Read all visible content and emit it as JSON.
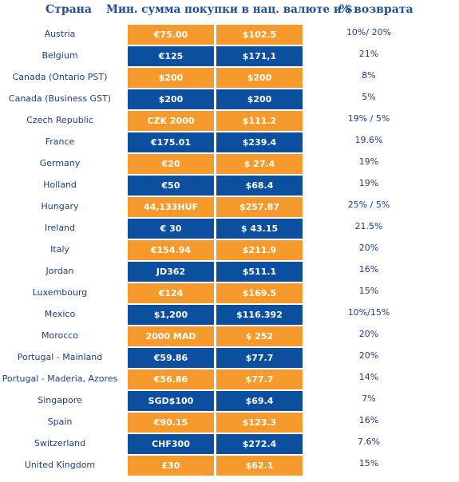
{
  "header": {
    "country": "Страна",
    "min_purchase": "Мин. сумма покупки в нац. валюте и $",
    "refund_pct": "% возврата"
  },
  "rows": [
    {
      "country": "Austria",
      "local": "€75.00",
      "usd": "$102.5",
      "pct": "10%/ 20%",
      "color": "#f79a2e"
    },
    {
      "country": "Belgium",
      "local": "€125",
      "usd": "$171,1",
      "pct": "21%",
      "color": "#0d4f9f"
    },
    {
      "country": "Canada (Ontario PST)",
      "local": "$200",
      "usd": "$200",
      "pct": "8%",
      "color": "#f79a2e"
    },
    {
      "country": "Canada (Business GST)",
      "local": "$200",
      "usd": "$200",
      "pct": "5%",
      "color": "#0d4f9f"
    },
    {
      "country": "Czech Republic",
      "local": "CZK 2000",
      "usd": "$111.2",
      "pct": "19% / 5%",
      "color": "#f79a2e"
    },
    {
      "country": "France",
      "local": "€175.01",
      "usd": "$239.4",
      "pct": "19.6%",
      "color": "#0d4f9f"
    },
    {
      "country": "Germany",
      "local": "€20",
      "usd": "$ 27.4",
      "pct": "19%",
      "color": "#f79a2e"
    },
    {
      "country": "Holland",
      "local": "€50",
      "usd": "$68.4",
      "pct": "19%",
      "color": "#0d4f9f"
    },
    {
      "country": "Hungary",
      "local": "44,133HUF",
      "usd": "$257.87",
      "pct": "25% / 5%",
      "color": "#f79a2e"
    },
    {
      "country": "Ireland",
      "local": "€ 30",
      "usd": "$ 43.15",
      "pct": "21.5%",
      "color": "#0d4f9f"
    },
    {
      "country": "Italy",
      "local": "€154.94",
      "usd": "$211.9",
      "pct": "20%",
      "color": "#f79a2e"
    },
    {
      "country": "Jordan",
      "local": "JD362",
      "usd": "$511.1",
      "pct": "16%",
      "color": "#0d4f9f"
    },
    {
      "country": "Luxembourg",
      "local": "€124",
      "usd": "$169.5",
      "pct": "15%",
      "color": "#f79a2e"
    },
    {
      "country": "Mexico",
      "local": "$1,200",
      "usd": "$116.392",
      "pct": "10%/15%",
      "color": "#0d4f9f"
    },
    {
      "country": "Morocco",
      "local": "2000 MAD",
      "usd": "$ 252",
      "pct": "20%",
      "color": "#f79a2e"
    },
    {
      "country": "Portugal - Mainland",
      "local": "€59.86",
      "usd": "$77.7",
      "pct": "20%",
      "color": "#0d4f9f"
    },
    {
      "country": "Portugal - Maderia, Azores",
      "local": "€56.86",
      "usd": "$77.7",
      "pct": "14%",
      "color": "#f79a2e"
    },
    {
      "country": "Singapore",
      "local": "SGD$100",
      "usd": "$69.4",
      "pct": "7%",
      "color": "#0d4f9f"
    },
    {
      "country": "Spain",
      "local": "€90.15",
      "usd": "$123.3",
      "pct": "16%",
      "color": "#f79a2e"
    },
    {
      "country": "Switzerland",
      "local": "CHF300",
      "usd": "$272.4",
      "pct": "7.6%",
      "color": "#0d4f9f"
    },
    {
      "country": "United Kingdom",
      "local": "£30",
      "usd": "$62.1",
      "pct": "15%",
      "color": "#f79a2e"
    }
  ]
}
